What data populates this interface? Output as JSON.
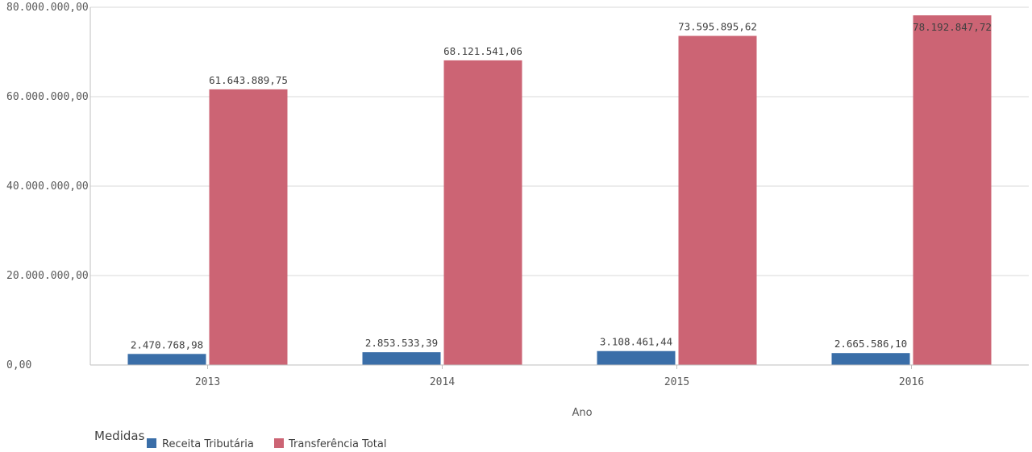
{
  "chart_data": {
    "type": "bar",
    "categories": [
      "2013",
      "2014",
      "2015",
      "2016"
    ],
    "series": [
      {
        "name": "Receita Tributária",
        "color": "#3a6ea8",
        "values": [
          2470768.98,
          2853533.39,
          3108461.44,
          2665586.1
        ],
        "labels": [
          "2.470.768,98",
          "2.853.533,39",
          "3.108.461,44",
          "2.665.586,10"
        ]
      },
      {
        "name": "Transferência Total",
        "color": "#cc6474",
        "values": [
          61643889.75,
          68121541.06,
          73595895.62,
          78192847.72
        ],
        "labels": [
          "61.643.889,75",
          "68.121.541,06",
          "73.595.895,62",
          "78.192.847,72"
        ]
      }
    ],
    "ylim": [
      0,
      80000000
    ],
    "yticks": [
      0,
      20000000,
      40000000,
      60000000,
      80000000
    ],
    "ytick_labels": [
      "0,00",
      "20.000.000,00",
      "40.000.000,00",
      "60.000.000,00",
      "80.000.000,00"
    ],
    "xlabel": "Ano",
    "ylabel": "",
    "grid": true,
    "legend": {
      "title": "Medidas",
      "placement": "bottom-left",
      "entries": [
        "Receita Tributária",
        "Transferência Total"
      ]
    }
  }
}
